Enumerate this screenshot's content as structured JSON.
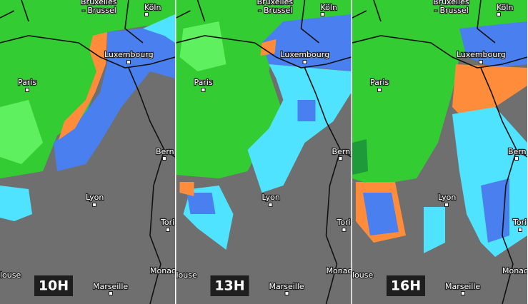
{
  "panels": [
    {
      "time": "10H",
      "labels": [
        "Bruxelles",
        "- Brussel",
        "Köln",
        "Luxembourg",
        "Paris",
        "Bern",
        "Lyon",
        "Tori",
        "Monac",
        "Marseille",
        "louse"
      ]
    },
    {
      "time": "13H",
      "labels": [
        "Bruxelles",
        "- Brussel",
        "Köln",
        "Luxembourg",
        "Paris",
        "Bern",
        "Lyon",
        "Tori",
        "Monac",
        "Marseille",
        "louse"
      ]
    },
    {
      "time": "16H",
      "labels": [
        "Bruxelles",
        "- Brussel",
        "Köln",
        "Luxembourg",
        "Paris",
        "Bern",
        "Lyon",
        "Tori",
        "Monac",
        "Marseille",
        "louse"
      ]
    }
  ]
}
